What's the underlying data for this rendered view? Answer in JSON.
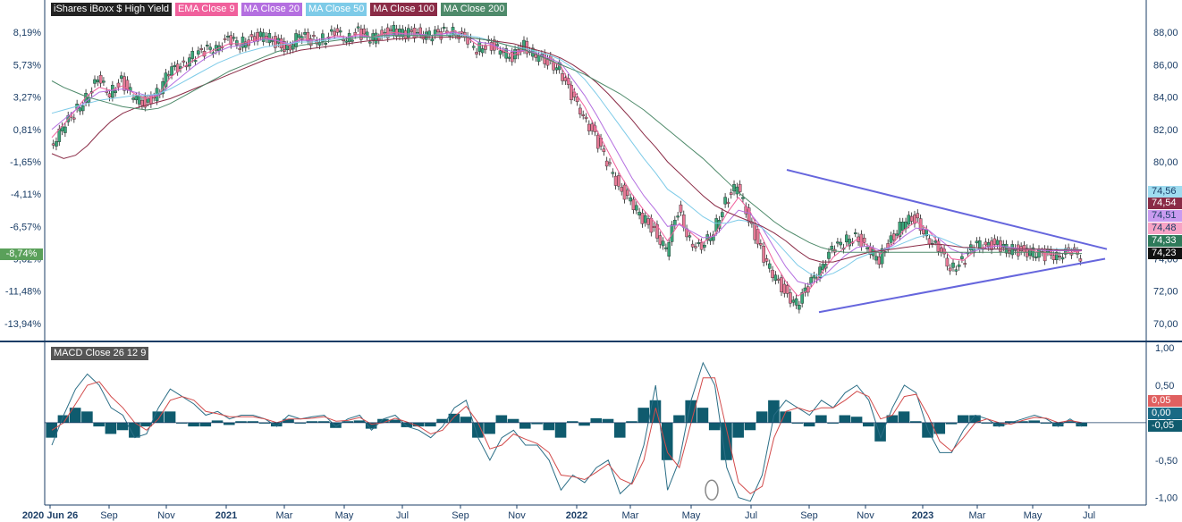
{
  "legend": [
    {
      "label": "iShares iBoxx $ High Yield",
      "color": "#222222"
    },
    {
      "label": "EMA Close 9",
      "color": "#f0609c"
    },
    {
      "label": "MA Close 20",
      "color": "#b46fe0"
    },
    {
      "label": "MA Close 50",
      "color": "#7ecbe8"
    },
    {
      "label": "MA Close 100",
      "color": "#8a2b46"
    },
    {
      "label": "MA Close 200",
      "color": "#4e8a6a"
    }
  ],
  "macd_title": "MACD Close 26 12 9",
  "current_pct_label": "-8,74%",
  "price_badges": [
    {
      "text": "74,56",
      "bg": "#9fdcf0",
      "fg": "#1a3d66"
    },
    {
      "text": "74,54",
      "bg": "#8a2b46",
      "fg": "#ffffff"
    },
    {
      "text": "74,51",
      "bg": "#c99bf0",
      "fg": "#1a3d66"
    },
    {
      "text": "74,48",
      "bg": "#f7a3c5",
      "fg": "#1a3d66"
    },
    {
      "text": "74,33",
      "bg": "#2f7a5a",
      "fg": "#ffffff"
    },
    {
      "text": "74,23",
      "bg": "#111111",
      "fg": "#ffffff"
    }
  ],
  "macd_badges": [
    {
      "text": "0,05",
      "bg": "#e06060",
      "fg": "#ffffff"
    },
    {
      "text": "0,00",
      "bg": "#1a6a85",
      "fg": "#ffffff"
    },
    {
      "text": "-0,05",
      "bg": "#0f5b6e",
      "fg": "#ffffff"
    }
  ],
  "chart_data": [
    {
      "type": "line",
      "title": "",
      "xlabel": "",
      "ylabel": "",
      "ylim": [
        69,
        90
      ],
      "y_right_ticks": [
        "88,00",
        "86,00",
        "84,00",
        "82,00",
        "80,00",
        "78,00",
        "76,00",
        "74,00",
        "72,00",
        "70,00"
      ],
      "y_left_ticks": [
        "8,19%",
        "5,73%",
        "3,27%",
        "0,81%",
        "-1,65%",
        "-4,11%",
        "-6,57%",
        "-9,02%",
        "-11,48%",
        "-13,94%"
      ],
      "x_ticks": [
        "2020 Jun 26",
        "Sep",
        "Nov",
        "2021",
        "Mar",
        "May",
        "Jul",
        "Sep",
        "Nov",
        "2022",
        "Mar",
        "May",
        "Jul",
        "Sep",
        "Nov",
        "2023",
        "Mar",
        "May",
        "Jul"
      ],
      "series": [
        {
          "name": "iShares iBoxx $ High Yield",
          "color": "#222222",
          "values": [
            81,
            82,
            83,
            84,
            85,
            84.3,
            85,
            84,
            83.6,
            84.2,
            85.5,
            86,
            86.5,
            86.8,
            87.2,
            87.5,
            87.3,
            87.6,
            87.8,
            87.4,
            87,
            87.8,
            87.5,
            87.6,
            87.9,
            87.7,
            88,
            87.6,
            87.9,
            88.1,
            87.9,
            88,
            87.8,
            87.9,
            88.2,
            87.5,
            87,
            87.3,
            86.8,
            86.5,
            87.2,
            86.5,
            86.2,
            85.8,
            84,
            83,
            81.5,
            80,
            78.5,
            77.5,
            76.5,
            75.8,
            74.5,
            77,
            75.2,
            74.5,
            75.8,
            77.5,
            78.5,
            76.5,
            74.5,
            73,
            72,
            71.2,
            72.2,
            73.5,
            74.5,
            75,
            75.5,
            74.5,
            74,
            75.2,
            76.2,
            76.5,
            75.5,
            74.5,
            73.5,
            73.8,
            74.8,
            75,
            74.8,
            74.6,
            74.5,
            74.4,
            74.2,
            74.3,
            74.4,
            74.2
          ]
        },
        {
          "name": "EMA Close 9",
          "color": "#f0609c",
          "values": [
            81.5,
            82.3,
            83.2,
            84.1,
            84.6,
            84.4,
            84.7,
            84.2,
            83.9,
            84.1,
            85.2,
            85.8,
            86.3,
            86.7,
            87,
            87.3,
            87.3,
            87.5,
            87.7,
            87.5,
            87.2,
            87.6,
            87.5,
            87.6,
            87.8,
            87.7,
            87.9,
            87.7,
            87.9,
            88,
            87.9,
            87.9,
            87.8,
            87.9,
            88.1,
            87.7,
            87.2,
            87.2,
            86.9,
            86.6,
            86.9,
            86.6,
            86.3,
            85.9,
            84.5,
            83.4,
            82,
            80.6,
            79.2,
            78,
            77,
            76.2,
            75.1,
            76.2,
            75.6,
            75,
            75.5,
            76.8,
            77.8,
            76.9,
            75.3,
            73.8,
            72.6,
            71.7,
            72.1,
            73.1,
            74.1,
            74.7,
            75.2,
            74.8,
            74.3,
            74.9,
            75.8,
            76.3,
            75.8,
            74.9,
            74,
            73.9,
            74.5,
            74.8,
            74.8,
            74.7,
            74.6,
            74.5,
            74.3,
            74.3,
            74.4,
            74.5
          ]
        },
        {
          "name": "MA Close 20",
          "color": "#b46fe0",
          "values": [
            82,
            82.6,
            83.2,
            83.8,
            84.3,
            84.4,
            84.5,
            84.3,
            84.1,
            84.1,
            84.7,
            85.3,
            85.9,
            86.4,
            86.8,
            87.1,
            87.2,
            87.4,
            87.6,
            87.5,
            87.3,
            87.5,
            87.5,
            87.6,
            87.7,
            87.7,
            87.8,
            87.7,
            87.8,
            87.9,
            87.9,
            87.9,
            87.8,
            87.9,
            88,
            87.8,
            87.4,
            87.3,
            87,
            86.8,
            86.9,
            86.7,
            86.4,
            86.1,
            85.1,
            84.1,
            82.9,
            81.6,
            80.3,
            79,
            77.9,
            77,
            76,
            76.1,
            75.7,
            75.3,
            75.4,
            76.2,
            77,
            76.8,
            75.9,
            74.7,
            73.5,
            72.6,
            72.4,
            72.8,
            73.5,
            74.2,
            74.7,
            74.8,
            74.5,
            74.8,
            75.4,
            75.9,
            75.8,
            75.2,
            74.6,
            74.3,
            74.5,
            74.7,
            74.8,
            74.7,
            74.6,
            74.6,
            74.5,
            74.5,
            74.5,
            74.5
          ]
        },
        {
          "name": "MA Close 50",
          "color": "#7ecbe8",
          "values": [
            83,
            83.2,
            83.4,
            83.6,
            83.8,
            83.9,
            84,
            84.1,
            84.1,
            84.2,
            84.5,
            84.9,
            85.3,
            85.7,
            86.1,
            86.4,
            86.7,
            86.9,
            87.1,
            87.2,
            87.3,
            87.4,
            87.4,
            87.5,
            87.6,
            87.6,
            87.7,
            87.7,
            87.7,
            87.8,
            87.8,
            87.8,
            87.8,
            87.8,
            87.9,
            87.8,
            87.7,
            87.5,
            87.3,
            87.1,
            87,
            86.8,
            86.6,
            86.3,
            85.8,
            85.1,
            84.2,
            83.2,
            82.2,
            81.2,
            80.2,
            79.3,
            78.3,
            77.8,
            77.2,
            76.6,
            76.2,
            76.2,
            76.4,
            76.3,
            75.9,
            75.2,
            74.4,
            73.6,
            73.1,
            72.9,
            73.1,
            73.5,
            74,
            74.3,
            74.5,
            74.7,
            75,
            75.3,
            75.5,
            75.3,
            75,
            74.7,
            74.6,
            74.6,
            74.6,
            74.6,
            74.6,
            74.6,
            74.6,
            74.6,
            74.6,
            74.56
          ]
        },
        {
          "name": "MA Close 100",
          "color": "#8a2b46",
          "values": [
            80.5,
            80.2,
            80.4,
            81,
            81.8,
            82.5,
            83,
            83.3,
            83.5,
            83.7,
            83.9,
            84.2,
            84.5,
            84.8,
            85.1,
            85.4,
            85.7,
            86,
            86.3,
            86.5,
            86.7,
            86.9,
            87,
            87.1,
            87.2,
            87.3,
            87.4,
            87.5,
            87.5,
            87.6,
            87.6,
            87.7,
            87.7,
            87.7,
            87.7,
            87.7,
            87.6,
            87.5,
            87.4,
            87.3,
            87.1,
            86.9,
            86.7,
            86.4,
            86,
            85.5,
            84.9,
            84.2,
            83.4,
            82.6,
            81.7,
            80.9,
            80,
            79.3,
            78.6,
            77.9,
            77.3,
            76.9,
            76.6,
            76.3,
            76,
            75.6,
            75.1,
            74.5,
            74,
            73.8,
            73.8,
            74,
            74.2,
            74.4,
            74.5,
            74.6,
            74.7,
            74.8,
            74.9,
            74.9,
            74.8,
            74.7,
            74.7,
            74.6,
            74.6,
            74.6,
            74.6,
            74.6,
            74.6,
            74.55,
            74.54,
            74.54
          ]
        },
        {
          "name": "MA Close 200",
          "color": "#4e8a6a",
          "values": [
            85,
            84.6,
            84.3,
            84,
            83.8,
            83.6,
            83.4,
            83.3,
            83.2,
            83.3,
            83.6,
            84,
            84.4,
            84.8,
            85.2,
            85.6,
            85.9,
            86.2,
            86.5,
            86.8,
            87,
            87.2,
            87.3,
            87.4,
            87.5,
            87.6,
            87.7,
            87.7,
            87.8,
            87.8,
            87.8,
            87.8,
            87.8,
            87.8,
            87.8,
            87.7,
            87.6,
            87.5,
            87.3,
            87.1,
            86.9,
            86.6,
            86.3,
            86,
            85.7,
            85.4,
            85,
            84.6,
            84.2,
            83.7,
            83.2,
            82.6,
            82,
            81.4,
            80.8,
            80.2,
            79.5,
            78.8,
            78.1,
            77.5,
            76.9,
            76.3,
            75.8,
            75.4,
            75,
            74.7,
            74.5,
            74.4,
            74.4,
            74.4,
            74.4,
            74.4,
            74.4,
            74.4,
            74.4,
            74.4,
            74.4,
            74.4,
            74.4,
            74.4,
            74.4,
            74.4,
            74.4,
            74.4,
            74.4,
            74.35,
            74.33,
            74.33
          ]
        }
      ],
      "trendlines": [
        {
          "name": "upper-trendline",
          "from": [
            "2022 Aug",
            79.5
          ],
          "to": [
            "2023 Jul",
            74.6
          ]
        },
        {
          "name": "lower-trendline",
          "from": [
            "2022 Sep",
            70.7
          ],
          "to": [
            "2023 Jul",
            74.0
          ]
        }
      ]
    },
    {
      "type": "bar",
      "title": "MACD Close 26 12 9",
      "ylim": [
        -1.1,
        1.05
      ],
      "y_ticks": [
        "1,00",
        "0,50",
        "0,00",
        "-0,50",
        "-1,00"
      ],
      "series": [
        {
          "name": "MACD",
          "color": "#2b6e86",
          "values": [
            -0.3,
            0.1,
            0.45,
            0.65,
            0.5,
            0.2,
            0.1,
            -0.2,
            -0.15,
            0.2,
            0.45,
            0.35,
            0.25,
            0.1,
            0.15,
            0.05,
            0.1,
            0.1,
            0.05,
            -0.05,
            0.1,
            0.05,
            0.08,
            0.1,
            -0.05,
            0.05,
            0.1,
            -0.1,
            0.05,
            0.1,
            -0.05,
            -0.1,
            -0.2,
            -0.05,
            0.2,
            0.3,
            -0.2,
            -0.5,
            -0.2,
            -0.1,
            -0.3,
            -0.3,
            -0.5,
            -0.9,
            -0.7,
            -0.8,
            -0.6,
            -0.5,
            -0.95,
            -0.8,
            -0.3,
            0.5,
            -0.9,
            -0.5,
            0.3,
            0.8,
            0.5,
            -0.6,
            -1.0,
            -1.05,
            -0.7,
            0.1,
            0.3,
            0.2,
            0.1,
            0.3,
            0.2,
            0.4,
            0.5,
            0.3,
            -0.2,
            0.2,
            0.5,
            0.4,
            -0.1,
            -0.4,
            -0.4,
            -0.1,
            0.1,
            0.05,
            -0.05,
            0,
            0.05,
            0.1,
            0.05,
            -0.05,
            0.05,
            -0.05
          ]
        },
        {
          "name": "Signal",
          "color": "#d24b4b",
          "values": [
            -0.1,
            0.0,
            0.25,
            0.5,
            0.55,
            0.35,
            0.2,
            0.0,
            -0.1,
            0.05,
            0.3,
            0.35,
            0.3,
            0.15,
            0.12,
            0.08,
            0.08,
            0.08,
            0.05,
            0.0,
            0.05,
            0.05,
            0.06,
            0.08,
            0.02,
            0.03,
            0.07,
            -0.02,
            0.0,
            0.06,
            0.01,
            -0.05,
            -0.15,
            -0.1,
            0.08,
            0.22,
            0.0,
            -0.35,
            -0.3,
            -0.15,
            -0.22,
            -0.28,
            -0.4,
            -0.7,
            -0.72,
            -0.76,
            -0.66,
            -0.55,
            -0.75,
            -0.82,
            -0.5,
            0.2,
            -0.4,
            -0.6,
            0.0,
            0.6,
            0.6,
            -0.1,
            -0.8,
            -0.95,
            -0.85,
            -0.2,
            0.15,
            0.2,
            0.15,
            0.2,
            0.2,
            0.3,
            0.42,
            0.35,
            0.05,
            0.1,
            0.35,
            0.38,
            0.1,
            -0.25,
            -0.38,
            -0.2,
            0.0,
            0.05,
            0.0,
            -0.02,
            0.03,
            0.07,
            0.06,
            0.0,
            0.03,
            0.0
          ]
        },
        {
          "name": "Histogram",
          "color": "#0f5b6e",
          "values": [
            -0.2,
            0.1,
            0.2,
            0.15,
            -0.05,
            -0.15,
            -0.1,
            -0.2,
            -0.05,
            0.15,
            0.15,
            0.0,
            -0.05,
            -0.05,
            0.03,
            -0.03,
            0.02,
            0.02,
            0.0,
            -0.05,
            0.05,
            0.0,
            0.02,
            0.02,
            -0.07,
            0.02,
            0.03,
            -0.08,
            0.05,
            0.04,
            -0.06,
            -0.05,
            -0.05,
            0.05,
            0.12,
            0.08,
            -0.2,
            -0.15,
            0.1,
            0.05,
            -0.08,
            -0.02,
            -0.1,
            -0.2,
            0.02,
            -0.04,
            0.06,
            0.05,
            -0.2,
            0.02,
            0.2,
            0.3,
            -0.5,
            0.1,
            0.3,
            0.2,
            -0.1,
            -0.5,
            -0.2,
            -0.1,
            0.15,
            0.3,
            0.15,
            0.0,
            -0.05,
            0.1,
            0.0,
            0.1,
            0.08,
            -0.05,
            -0.25,
            0.1,
            0.15,
            0.02,
            -0.2,
            -0.15,
            -0.02,
            0.1,
            0.1,
            0.0,
            -0.05,
            0.02,
            0.02,
            0.03,
            -0.01,
            -0.05,
            0.02,
            -0.05
          ]
        }
      ]
    }
  ]
}
